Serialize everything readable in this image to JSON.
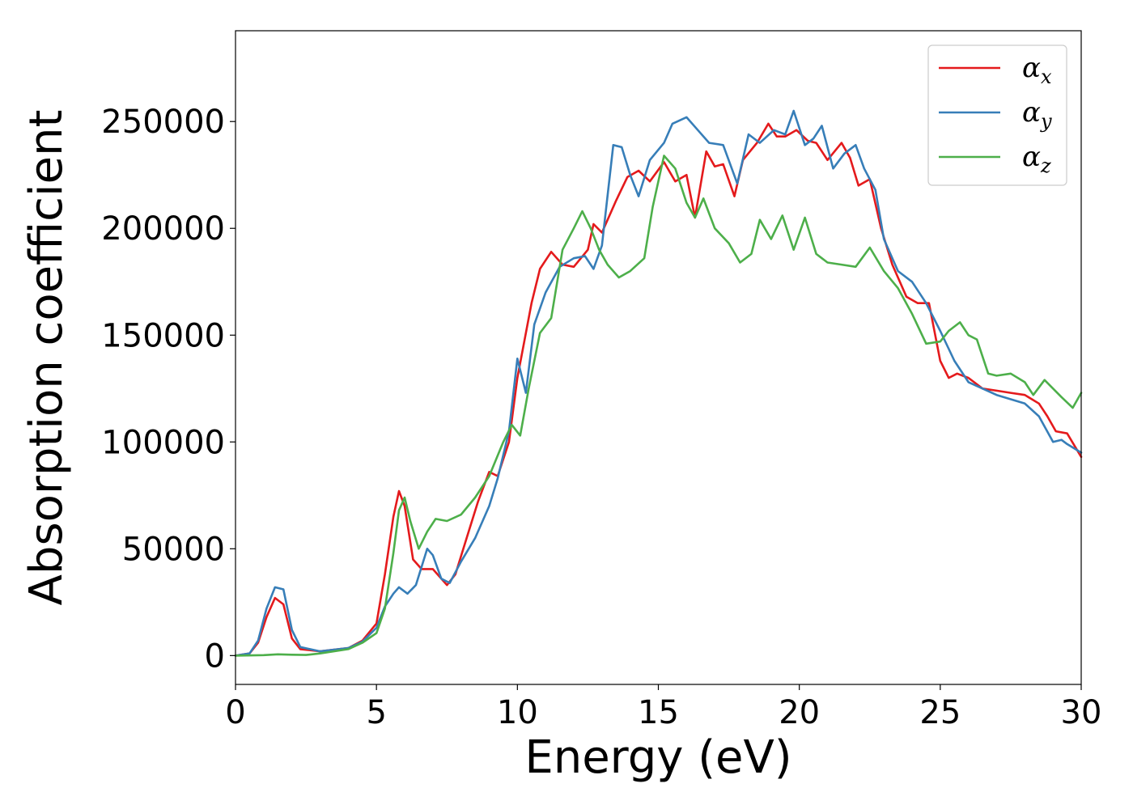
{
  "chart_data": {
    "type": "line",
    "xlabel": "Energy (eV)",
    "ylabel": "Absorption coefficient",
    "xlim": [
      0,
      30
    ],
    "ylim": [
      -13500,
      292500
    ],
    "x_ticks": [
      0,
      5,
      10,
      15,
      20,
      25,
      30
    ],
    "y_ticks": [
      0,
      50000,
      100000,
      150000,
      200000,
      250000
    ],
    "grid": false,
    "legend": "top-right",
    "series": [
      {
        "name": "α_x",
        "symbol": "α",
        "subscript": "x",
        "color": "#e41a1c",
        "points": [
          [
            0,
            0
          ],
          [
            0.5,
            1000
          ],
          [
            0.8,
            6000
          ],
          [
            1.1,
            18000
          ],
          [
            1.4,
            27000
          ],
          [
            1.7,
            24000
          ],
          [
            2.0,
            8000
          ],
          [
            2.3,
            3000
          ],
          [
            3.0,
            2000
          ],
          [
            4.0,
            3500
          ],
          [
            4.5,
            7000
          ],
          [
            5.0,
            15000
          ],
          [
            5.3,
            38000
          ],
          [
            5.6,
            65000
          ],
          [
            5.8,
            77000
          ],
          [
            6.0,
            70000
          ],
          [
            6.3,
            45000
          ],
          [
            6.6,
            40500
          ],
          [
            7.0,
            40500
          ],
          [
            7.3,
            36000
          ],
          [
            7.5,
            33000
          ],
          [
            7.8,
            38000
          ],
          [
            8.2,
            55000
          ],
          [
            8.6,
            72000
          ],
          [
            9.0,
            86000
          ],
          [
            9.3,
            84000
          ],
          [
            9.7,
            100000
          ],
          [
            10.0,
            130000
          ],
          [
            10.5,
            165000
          ],
          [
            10.8,
            181000
          ],
          [
            11.2,
            189000
          ],
          [
            11.6,
            183000
          ],
          [
            12.0,
            182000
          ],
          [
            12.5,
            190000
          ],
          [
            12.7,
            202000
          ],
          [
            13.0,
            198000
          ],
          [
            13.5,
            213000
          ],
          [
            13.9,
            224000
          ],
          [
            14.3,
            227000
          ],
          [
            14.7,
            222000
          ],
          [
            15.2,
            231000
          ],
          [
            15.6,
            222000
          ],
          [
            16.0,
            225000
          ],
          [
            16.3,
            205000
          ],
          [
            16.7,
            236000
          ],
          [
            17.0,
            229000
          ],
          [
            17.3,
            230000
          ],
          [
            17.7,
            215000
          ],
          [
            18.0,
            232000
          ],
          [
            18.5,
            240000
          ],
          [
            18.9,
            249000
          ],
          [
            19.2,
            243000
          ],
          [
            19.5,
            243000
          ],
          [
            19.9,
            246000
          ],
          [
            20.3,
            241000
          ],
          [
            20.6,
            240000
          ],
          [
            21.0,
            232000
          ],
          [
            21.5,
            240000
          ],
          [
            21.8,
            233000
          ],
          [
            22.1,
            220000
          ],
          [
            22.5,
            223000
          ],
          [
            22.9,
            200000
          ],
          [
            23.3,
            183000
          ],
          [
            23.8,
            168000
          ],
          [
            24.2,
            165000
          ],
          [
            24.6,
            165000
          ],
          [
            25.0,
            138000
          ],
          [
            25.3,
            130000
          ],
          [
            25.6,
            132000
          ],
          [
            26.0,
            130000
          ],
          [
            26.5,
            125000
          ],
          [
            27.0,
            124000
          ],
          [
            27.5,
            123000
          ],
          [
            28.0,
            122000
          ],
          [
            28.5,
            118000
          ],
          [
            28.8,
            112000
          ],
          [
            29.1,
            105000
          ],
          [
            29.5,
            104000
          ],
          [
            30.0,
            93000
          ]
        ]
      },
      {
        "name": "α_y",
        "symbol": "α",
        "subscript": "y",
        "color": "#377eb8",
        "points": [
          [
            0,
            0
          ],
          [
            0.5,
            1000
          ],
          [
            0.8,
            7000
          ],
          [
            1.1,
            22000
          ],
          [
            1.4,
            32000
          ],
          [
            1.7,
            31000
          ],
          [
            2.0,
            12000
          ],
          [
            2.3,
            4000
          ],
          [
            3.0,
            2000
          ],
          [
            4.0,
            3500
          ],
          [
            4.5,
            6500
          ],
          [
            5.0,
            13000
          ],
          [
            5.3,
            23000
          ],
          [
            5.6,
            29000
          ],
          [
            5.8,
            32000
          ],
          [
            6.1,
            29000
          ],
          [
            6.4,
            33000
          ],
          [
            6.8,
            50000
          ],
          [
            7.0,
            47000
          ],
          [
            7.3,
            36000
          ],
          [
            7.6,
            34000
          ],
          [
            8.0,
            44000
          ],
          [
            8.5,
            55000
          ],
          [
            9.0,
            70000
          ],
          [
            9.3,
            83000
          ],
          [
            9.7,
            105000
          ],
          [
            10.0,
            139000
          ],
          [
            10.3,
            123000
          ],
          [
            10.6,
            155000
          ],
          [
            11.0,
            170000
          ],
          [
            11.5,
            182000
          ],
          [
            12.0,
            186000
          ],
          [
            12.4,
            187000
          ],
          [
            12.7,
            181000
          ],
          [
            13.0,
            192000
          ],
          [
            13.4,
            239000
          ],
          [
            13.7,
            238000
          ],
          [
            14.0,
            225000
          ],
          [
            14.3,
            215000
          ],
          [
            14.7,
            232000
          ],
          [
            15.2,
            240000
          ],
          [
            15.5,
            249000
          ],
          [
            16.0,
            252000
          ],
          [
            16.4,
            246000
          ],
          [
            16.8,
            240000
          ],
          [
            17.3,
            239000
          ],
          [
            17.8,
            221000
          ],
          [
            18.2,
            244000
          ],
          [
            18.6,
            240000
          ],
          [
            19.1,
            246000
          ],
          [
            19.5,
            244000
          ],
          [
            19.8,
            255000
          ],
          [
            20.2,
            239000
          ],
          [
            20.5,
            242000
          ],
          [
            20.8,
            248000
          ],
          [
            21.2,
            228000
          ],
          [
            21.6,
            235000
          ],
          [
            22.0,
            239000
          ],
          [
            22.3,
            228000
          ],
          [
            22.7,
            218000
          ],
          [
            23.0,
            195000
          ],
          [
            23.5,
            180000
          ],
          [
            24.0,
            175000
          ],
          [
            24.5,
            165000
          ],
          [
            25.0,
            152000
          ],
          [
            25.5,
            138000
          ],
          [
            26.0,
            128000
          ],
          [
            26.5,
            125000
          ],
          [
            27.0,
            122000
          ],
          [
            27.5,
            120000
          ],
          [
            28.0,
            118000
          ],
          [
            28.5,
            112000
          ],
          [
            29.0,
            100000
          ],
          [
            29.3,
            101000
          ],
          [
            29.5,
            99000
          ],
          [
            30.0,
            95000
          ]
        ]
      },
      {
        "name": "α_z",
        "symbol": "α",
        "subscript": "z",
        "color": "#4daf4a",
        "points": [
          [
            0,
            0
          ],
          [
            1.0,
            200
          ],
          [
            1.5,
            600
          ],
          [
            2.0,
            400
          ],
          [
            2.5,
            300
          ],
          [
            3.0,
            1000
          ],
          [
            4.0,
            3000
          ],
          [
            4.5,
            6000
          ],
          [
            5.0,
            10500
          ],
          [
            5.3,
            22000
          ],
          [
            5.6,
            48000
          ],
          [
            5.8,
            68000
          ],
          [
            6.0,
            74000
          ],
          [
            6.2,
            63000
          ],
          [
            6.5,
            50000
          ],
          [
            6.8,
            58000
          ],
          [
            7.1,
            64000
          ],
          [
            7.5,
            63000
          ],
          [
            8.0,
            66000
          ],
          [
            8.5,
            74000
          ],
          [
            9.0,
            84000
          ],
          [
            9.5,
            100000
          ],
          [
            9.8,
            108000
          ],
          [
            10.1,
            103000
          ],
          [
            10.4,
            125000
          ],
          [
            10.8,
            151000
          ],
          [
            11.2,
            158000
          ],
          [
            11.6,
            190000
          ],
          [
            12.0,
            200000
          ],
          [
            12.3,
            208000
          ],
          [
            12.6,
            200000
          ],
          [
            12.9,
            190000
          ],
          [
            13.2,
            183000
          ],
          [
            13.6,
            177000
          ],
          [
            14.0,
            180000
          ],
          [
            14.5,
            186000
          ],
          [
            14.8,
            210000
          ],
          [
            15.2,
            234000
          ],
          [
            15.6,
            228000
          ],
          [
            16.0,
            212000
          ],
          [
            16.3,
            205000
          ],
          [
            16.6,
            214000
          ],
          [
            17.0,
            200000
          ],
          [
            17.5,
            193000
          ],
          [
            17.9,
            184000
          ],
          [
            18.3,
            188000
          ],
          [
            18.6,
            204000
          ],
          [
            19.0,
            195000
          ],
          [
            19.4,
            206000
          ],
          [
            19.8,
            190000
          ],
          [
            20.2,
            205000
          ],
          [
            20.6,
            188000
          ],
          [
            21.0,
            184000
          ],
          [
            21.5,
            183000
          ],
          [
            22.0,
            182000
          ],
          [
            22.5,
            191000
          ],
          [
            23.0,
            180000
          ],
          [
            23.5,
            172000
          ],
          [
            24.0,
            160000
          ],
          [
            24.5,
            146000
          ],
          [
            25.0,
            147000
          ],
          [
            25.3,
            152000
          ],
          [
            25.7,
            156000
          ],
          [
            26.0,
            150000
          ],
          [
            26.3,
            148000
          ],
          [
            26.7,
            132000
          ],
          [
            27.0,
            131000
          ],
          [
            27.5,
            132000
          ],
          [
            28.0,
            128000
          ],
          [
            28.3,
            122000
          ],
          [
            28.7,
            129000
          ],
          [
            29.0,
            125000
          ],
          [
            29.3,
            121000
          ],
          [
            29.7,
            116000
          ],
          [
            30.0,
            123000
          ]
        ]
      }
    ]
  }
}
